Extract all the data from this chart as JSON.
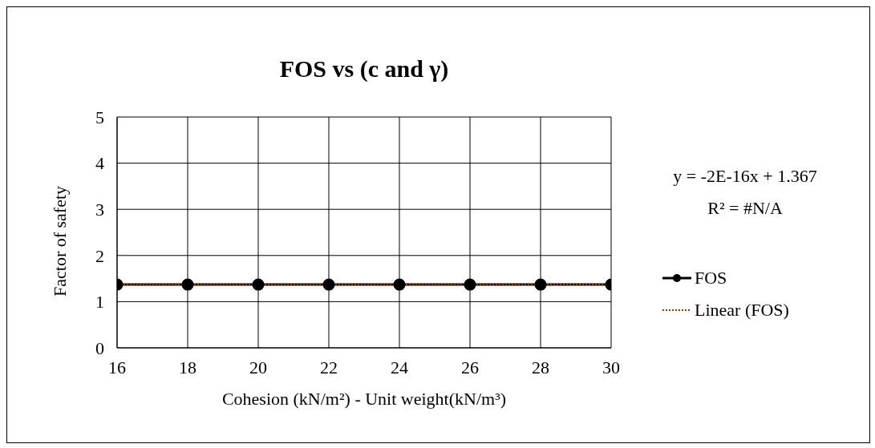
{
  "chart_data": {
    "type": "line",
    "title": "FOS vs (c and γ)",
    "xlabel": "Cohesion (kN/m²) - Unit weight(kN/m³)",
    "ylabel": "Factor of safety",
    "x": [
      16,
      18,
      20,
      22,
      24,
      26,
      28,
      30
    ],
    "series": [
      {
        "name": "FOS",
        "color": "#000000",
        "values": [
          1.37,
          1.37,
          1.37,
          1.37,
          1.37,
          1.37,
          1.37,
          1.37
        ],
        "marker": "circle",
        "line_style": "solid"
      },
      {
        "name": "Linear (FOS)",
        "color": "#843c0c",
        "x": [
          16,
          30
        ],
        "values": [
          1.37,
          1.37
        ],
        "marker": "none",
        "line_style": "dotted"
      }
    ],
    "xlim": [
      16,
      30
    ],
    "xticks": [
      16,
      18,
      20,
      22,
      24,
      26,
      28,
      30
    ],
    "ylim": [
      0,
      5
    ],
    "yticks": [
      0,
      1,
      2,
      3,
      4,
      5
    ],
    "grid": true,
    "legend": "right",
    "annotations": [
      "y = -2E-16x + 1.367",
      "R² = #N/A"
    ]
  }
}
